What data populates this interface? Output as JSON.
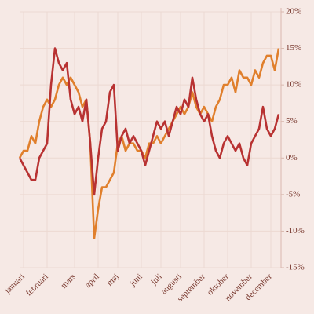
{
  "chart_data": {
    "type": "line",
    "categories": [
      null,
      "januari",
      null,
      null,
      null,
      null,
      null,
      "februari",
      null,
      null,
      null,
      null,
      null,
      null,
      "mars",
      null,
      null,
      null,
      null,
      null,
      "april",
      null,
      null,
      null,
      null,
      "maj",
      null,
      null,
      null,
      null,
      null,
      "juni",
      null,
      null,
      null,
      null,
      "juli",
      null,
      null,
      null,
      null,
      "augusti",
      null,
      null,
      null,
      null,
      null,
      "september",
      null,
      null,
      null,
      null,
      null,
      "oktober",
      null,
      null,
      null,
      null,
      null,
      "november",
      null,
      null,
      null,
      null,
      "december",
      null,
      null
    ],
    "series": [
      {
        "name": "series-1",
        "color": "#b83232",
        "values": [
          0,
          -1,
          -2,
          -3,
          -3,
          0,
          1,
          2,
          10,
          15,
          13,
          12,
          13,
          8,
          6,
          7,
          5,
          8,
          2,
          -5,
          0,
          4,
          5,
          9,
          10,
          1,
          3,
          4,
          2,
          3,
          2,
          1,
          -1,
          1,
          3,
          5,
          4,
          5,
          3,
          5,
          7,
          6,
          8,
          7,
          11,
          8,
          6,
          5,
          6,
          3,
          1,
          0,
          2,
          3,
          2,
          1,
          2,
          0,
          -1,
          2,
          3,
          4,
          7,
          4,
          3,
          4,
          6
        ]
      },
      {
        "name": "series-2",
        "color": "#e07f2c",
        "values": [
          0,
          1,
          1,
          3,
          2,
          5,
          7,
          8,
          7,
          8,
          10,
          11,
          10,
          11,
          10,
          9,
          7,
          8,
          2,
          -11,
          -7,
          -4,
          -4,
          -3,
          -2,
          2,
          3,
          1,
          2,
          2,
          1,
          1,
          0,
          2,
          2,
          3,
          2,
          3,
          4,
          5,
          6,
          7,
          6,
          7,
          9,
          7,
          6,
          7,
          6,
          5,
          7,
          8,
          10,
          10,
          11,
          9,
          12,
          11,
          11,
          10,
          12,
          11,
          13,
          14,
          14,
          12,
          15
        ]
      }
    ],
    "ylim": [
      -15,
      20
    ],
    "yticks": [
      {
        "value": -15,
        "label": "-15%"
      },
      {
        "value": -10,
        "label": "-10%"
      },
      {
        "value": -5,
        "label": "-5%"
      },
      {
        "value": 0,
        "label": "0%"
      },
      {
        "value": 5,
        "label": "5%"
      },
      {
        "value": 10,
        "label": "10%"
      },
      {
        "value": 15,
        "label": "15%"
      },
      {
        "value": 20,
        "label": "20%"
      }
    ],
    "grid": true
  }
}
